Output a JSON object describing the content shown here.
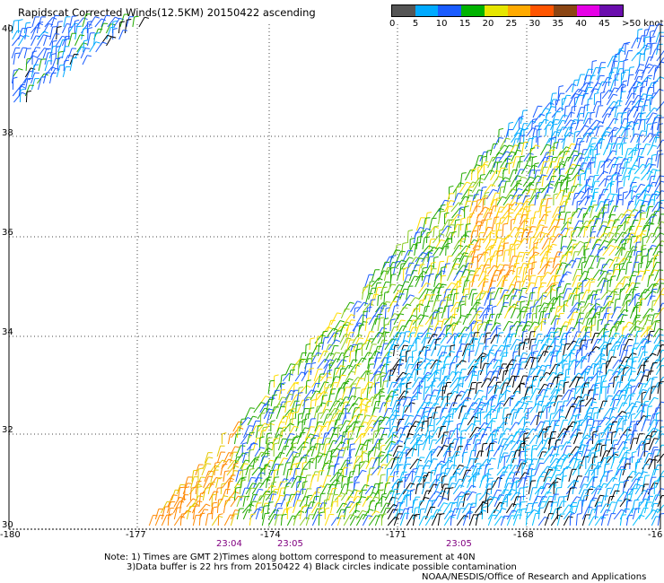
{
  "title": "Rapidscat Corrected Winds(12.5KM) 20150422 ascending",
  "legend": {
    "colors": [
      "#555555",
      "#00aaff",
      "#1a5cff",
      "#00b300",
      "#e6e600",
      "#ffaa00",
      "#ff5500",
      "#8b4513",
      "#e600e6",
      "#6a0dad"
    ],
    "ticks": [
      "0",
      "5",
      "10",
      "15",
      "20",
      "25",
      "30",
      "35",
      "40",
      "45",
      ">50 knots"
    ]
  },
  "axes": {
    "lat_labels": [
      "40",
      "38",
      "36",
      "34",
      "32",
      "30"
    ],
    "lon_labels": [
      "-180",
      "-177",
      "-174",
      "-171",
      "-168",
      "-16"
    ]
  },
  "time_labels": [
    "23:04",
    "23:05",
    "23:05"
  ],
  "notes": {
    "line1": "Note: 1) Times are GMT 2)Times along bottom correspond to measurement at 40N",
    "line2": "3)Data buffer is 22 hrs from 20150422 4) Black circles indicate possible contamination",
    "line3": "NOAA/NESDIS/Office of Research and Applications"
  }
}
